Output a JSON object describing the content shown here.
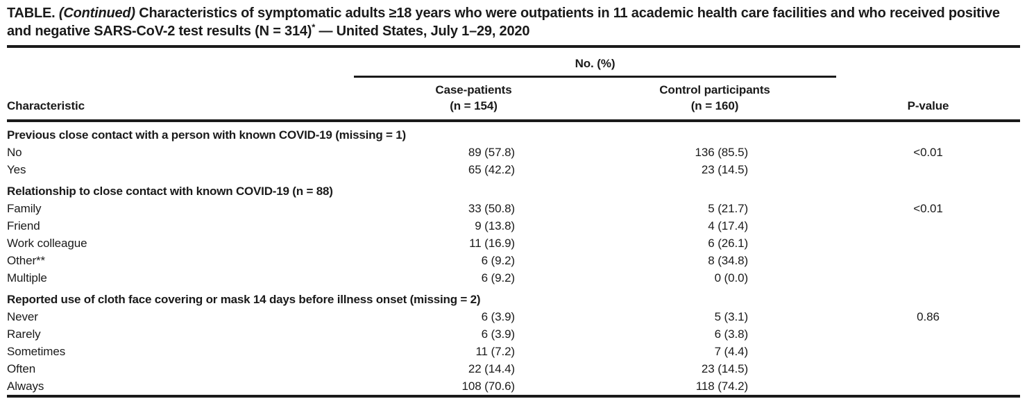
{
  "colors": {
    "text": "#1a1a1a",
    "rule": "#1a1a1a",
    "background": "#ffffff"
  },
  "title": {
    "label": "TABLE. ",
    "continued": "(Continued)",
    "main": " Characteristics of symptomatic adults ≥18 years who were outpatients in 11 academic health care facilities and who received positive and negative SARS-CoV-2 test results (N = 314)",
    "footnote_marker": "*",
    "suffix": " — United States, July 1–29, 2020"
  },
  "header": {
    "characteristic": "Characteristic",
    "group": "No. (%)",
    "case_line1": "Case-patients",
    "case_line2": "(n = 154)",
    "control_line1": "Control participants",
    "control_line2": "(n = 160)",
    "pvalue": "P-value"
  },
  "table": {
    "sections": [
      {
        "header": "Previous close contact with a person with known COVID-19 (missing = 1)",
        "rows": [
          {
            "label": "No",
            "case": "89 (57.8)",
            "control": "136 (85.5)",
            "pvalue": "<0.01"
          },
          {
            "label": "Yes",
            "case": "65 (42.2)",
            "control": "23 (14.5)",
            "pvalue": ""
          }
        ]
      },
      {
        "header": "Relationship to close contact with known COVID-19 (n = 88)",
        "rows": [
          {
            "label": "Family",
            "case": "33 (50.8)",
            "control": "5 (21.7)",
            "pvalue": "<0.01"
          },
          {
            "label": "Friend",
            "case": "9 (13.8)",
            "control": "4 (17.4)",
            "pvalue": ""
          },
          {
            "label": "Work colleague",
            "case": "11 (16.9)",
            "control": "6 (26.1)",
            "pvalue": ""
          },
          {
            "label": "Other**",
            "case": "6 (9.2)",
            "control": "8 (34.8)",
            "pvalue": ""
          },
          {
            "label": "Multiple",
            "case": "6 (9.2)",
            "control": "0 (0.0)",
            "pvalue": ""
          }
        ]
      },
      {
        "header": "Reported use of cloth face covering or mask 14 days before illness onset (missing = 2)",
        "rows": [
          {
            "label": "Never",
            "case": "6 (3.9)",
            "control": "5 (3.1)",
            "pvalue": "0.86"
          },
          {
            "label": "Rarely",
            "case": "6 (3.9)",
            "control": "6 (3.8)",
            "pvalue": ""
          },
          {
            "label": "Sometimes",
            "case": "11 (7.2)",
            "control": "7 (4.4)",
            "pvalue": ""
          },
          {
            "label": "Often",
            "case": "22 (14.4)",
            "control": "23 (14.5)",
            "pvalue": ""
          },
          {
            "label": "Always",
            "case": "108 (70.6)",
            "control": "118 (74.2)",
            "pvalue": ""
          }
        ]
      }
    ]
  }
}
